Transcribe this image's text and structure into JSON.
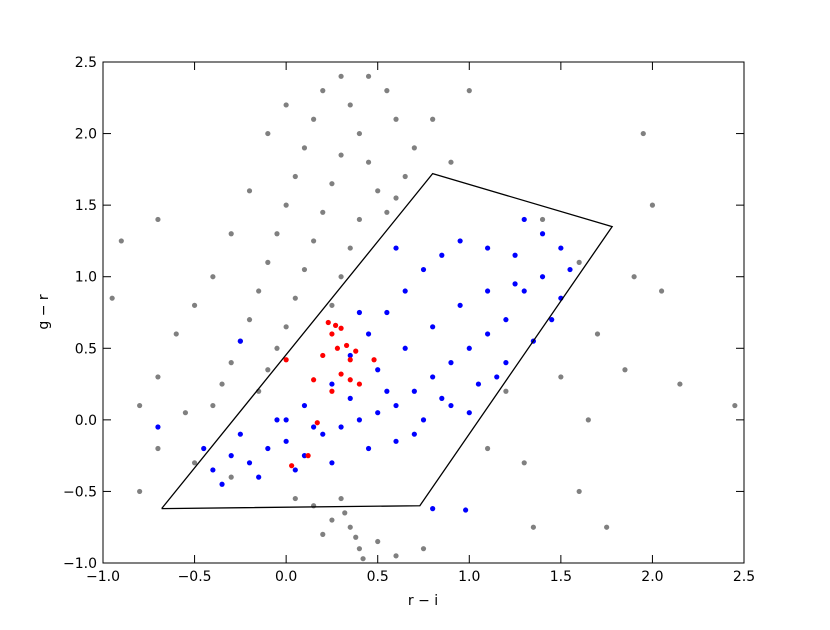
{
  "chart_data": {
    "type": "scatter",
    "x_label": "r − i",
    "y_label": "g − r",
    "xlim": [
      -1.0,
      2.5
    ],
    "ylim": [
      -1.0,
      2.5
    ],
    "xticks": [
      {
        "value": -1.0,
        "label": "−1.0"
      },
      {
        "value": -0.5,
        "label": "−0.5"
      },
      {
        "value": 0,
        "label": "0.0"
      },
      0.5,
      {
        "value": 1,
        "label": "1.0"
      },
      1.5,
      {
        "value": 2,
        "label": "2.0"
      },
      2.5
    ],
    "yticks": [
      {
        "value": -1.0,
        "label": "−1.0"
      },
      {
        "value": -0.5,
        "label": "−0.5"
      },
      {
        "value": 0,
        "label": "0.0"
      },
      0.5,
      {
        "value": 1,
        "label": "1.0"
      },
      1.5,
      {
        "value": 2,
        "label": "2.0"
      },
      2.5
    ],
    "series": [
      {
        "color": "#808080",
        "x": [
          0.3,
          0.2,
          0.35,
          0.15,
          0.4,
          0.1,
          0.3,
          0.45,
          0.05,
          0.25,
          0.5,
          0.0,
          0.2,
          0.4,
          -0.05,
          0.15,
          0.35,
          -0.1,
          0.1,
          0.3,
          -0.15,
          0.05,
          0.25,
          -0.2,
          0.0,
          -0.25,
          -0.05,
          -0.3,
          -0.1,
          -0.35,
          -0.15,
          -0.4,
          0.45,
          0.55,
          0.6,
          0.7,
          0.0,
          -0.1,
          -0.2,
          -0.3,
          -0.4,
          -0.5,
          -0.6,
          0.65,
          0.8,
          0.9,
          1.0,
          -0.7,
          -0.8,
          -0.9,
          -0.7,
          -0.95,
          1.9,
          2.0,
          2.05,
          2.15,
          2.45,
          1.85,
          1.65,
          1.6,
          1.75,
          1.35,
          0.3,
          0.32,
          0.35,
          0.38,
          0.4,
          0.42,
          0.25,
          0.2,
          0.5,
          0.6,
          0.15,
          0.05,
          0.75,
          -0.3,
          -0.5,
          -0.7,
          -0.8,
          1.1,
          1.2,
          1.3,
          1.5,
          1.4,
          1.6,
          1.7,
          1.95,
          0.55,
          0.6,
          -0.55
        ],
        "y": [
          2.4,
          2.3,
          2.2,
          2.1,
          2.0,
          1.9,
          1.85,
          1.8,
          1.7,
          1.65,
          1.6,
          1.5,
          1.45,
          1.4,
          1.3,
          1.25,
          1.2,
          1.1,
          1.05,
          1.0,
          0.9,
          0.85,
          0.8,
          0.7,
          0.65,
          0.55,
          0.5,
          0.4,
          0.35,
          0.25,
          0.2,
          0.1,
          2.4,
          2.3,
          2.1,
          1.9,
          2.2,
          2.0,
          1.6,
          1.3,
          1.0,
          0.8,
          0.6,
          1.7,
          2.1,
          1.8,
          2.3,
          0.3,
          0.1,
          1.25,
          1.4,
          0.85,
          1.0,
          1.5,
          0.9,
          0.25,
          0.1,
          0.35,
          0.0,
          -0.5,
          -0.75,
          -0.75,
          -0.55,
          -0.65,
          -0.75,
          -0.82,
          -0.9,
          -0.97,
          -0.7,
          -0.8,
          -0.85,
          -0.95,
          -0.6,
          -0.55,
          -0.9,
          -0.4,
          -0.3,
          -0.2,
          -0.5,
          -0.2,
          0.2,
          -0.3,
          0.3,
          1.4,
          1.1,
          0.6,
          2.0,
          1.45,
          1.55,
          0.05
        ]
      },
      {
        "color": "#0000ff",
        "x": [
          -0.4,
          -0.3,
          -0.2,
          -0.1,
          0.0,
          0.1,
          0.2,
          0.3,
          0.4,
          0.5,
          0.6,
          0.7,
          0.8,
          0.9,
          1.0,
          1.1,
          1.2,
          1.3,
          1.4,
          1.5,
          -0.35,
          -0.15,
          0.05,
          0.25,
          0.45,
          0.6,
          0.75,
          0.9,
          1.05,
          1.2,
          1.35,
          1.45,
          0.1,
          0.25,
          0.35,
          0.45,
          0.55,
          0.65,
          0.75,
          0.85,
          0.95,
          1.1,
          1.25,
          1.4,
          0.5,
          0.65,
          0.8,
          0.95,
          1.1,
          1.25,
          0.7,
          0.85,
          1.0,
          1.15,
          -0.25,
          -0.05,
          0.15,
          0.35,
          0.55,
          1.55,
          1.3,
          0.6,
          0.0,
          -0.45,
          -0.7,
          -0.25,
          0.98,
          0.8,
          1.5,
          0.4
        ],
        "y": [
          -0.35,
          -0.25,
          -0.3,
          -0.2,
          -0.15,
          -0.25,
          -0.1,
          -0.05,
          0.0,
          0.05,
          0.1,
          0.2,
          0.3,
          0.4,
          0.5,
          0.6,
          0.7,
          0.9,
          1.0,
          1.2,
          -0.45,
          -0.4,
          -0.35,
          -0.3,
          -0.2,
          -0.15,
          0.0,
          0.1,
          0.25,
          0.4,
          0.55,
          0.7,
          0.1,
          0.25,
          0.45,
          0.6,
          0.75,
          0.9,
          1.05,
          1.15,
          1.25,
          1.2,
          1.15,
          1.3,
          0.35,
          0.5,
          0.65,
          0.8,
          0.9,
          0.95,
          -0.1,
          0.15,
          0.05,
          0.3,
          -0.1,
          0.0,
          -0.05,
          0.15,
          0.2,
          1.05,
          1.4,
          1.2,
          0.0,
          -0.2,
          -0.05,
          0.55,
          -0.63,
          -0.62,
          0.85,
          0.75
        ]
      },
      {
        "color": "#ff0000",
        "x": [
          0.23,
          0.27,
          0.3,
          0.25,
          0.2,
          0.28,
          0.33,
          0.38,
          0.35,
          0.3,
          0.35,
          0.4,
          0.25,
          0.15,
          0.0,
          0.17,
          0.12,
          0.03,
          0.48
        ],
        "y": [
          0.68,
          0.66,
          0.64,
          0.6,
          0.45,
          0.5,
          0.52,
          0.48,
          0.42,
          0.32,
          0.28,
          0.25,
          0.2,
          0.28,
          0.42,
          -0.02,
          -0.25,
          -0.32,
          0.42
        ]
      }
    ],
    "outline": {
      "color": "#000000",
      "x": [
        -0.68,
        0.73,
        1.78,
        0.8,
        -0.68
      ],
      "y": [
        -0.62,
        -0.6,
        1.35,
        1.72,
        -0.62
      ]
    }
  }
}
